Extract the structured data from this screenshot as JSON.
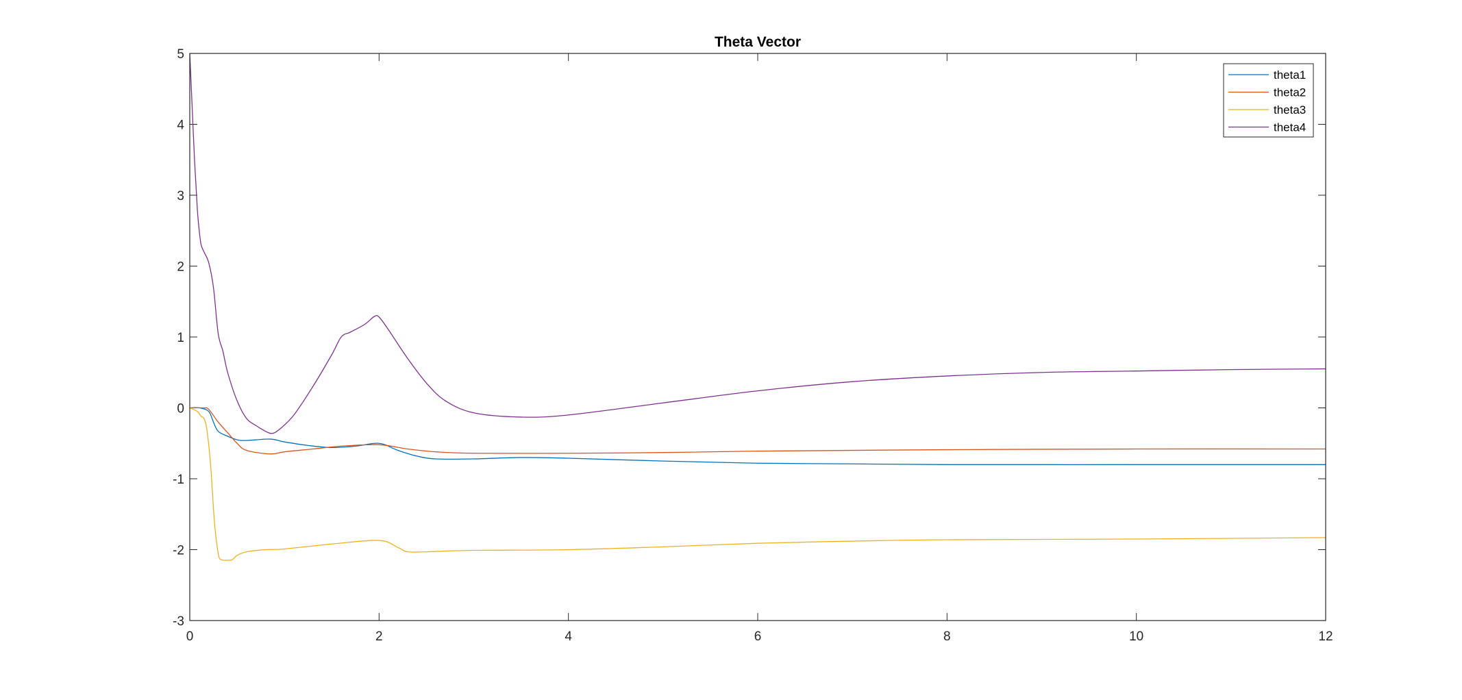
{
  "chart_data": {
    "type": "line",
    "title": "Theta Vector",
    "xlabel": "",
    "ylabel": "",
    "xlim": [
      0,
      12
    ],
    "ylim": [
      -3,
      5
    ],
    "xticks": [
      0,
      2,
      4,
      6,
      8,
      10,
      12
    ],
    "yticks": [
      -3,
      -2,
      -1,
      0,
      1,
      2,
      3,
      4,
      5
    ],
    "xtick_labels": [
      "0",
      "2",
      "4",
      "6",
      "8",
      "10",
      "12"
    ],
    "ytick_labels": [
      "-3",
      "-2",
      "-1",
      "0",
      "1",
      "2",
      "3",
      "4",
      "5"
    ],
    "grid": false,
    "legend_position": "top-right",
    "series": [
      {
        "name": "theta1",
        "color": "#0072BD",
        "points": [
          [
            0,
            0
          ],
          [
            0.1,
            0
          ],
          [
            0.2,
            -0.05
          ],
          [
            0.25,
            -0.2
          ],
          [
            0.3,
            -0.33
          ],
          [
            0.4,
            -0.4
          ],
          [
            0.5,
            -0.45
          ],
          [
            0.6,
            -0.46
          ],
          [
            0.85,
            -0.44
          ],
          [
            1.0,
            -0.48
          ],
          [
            1.25,
            -0.53
          ],
          [
            1.5,
            -0.56
          ],
          [
            1.75,
            -0.54
          ],
          [
            2.0,
            -0.5
          ],
          [
            2.2,
            -0.6
          ],
          [
            2.4,
            -0.68
          ],
          [
            2.6,
            -0.72
          ],
          [
            3.0,
            -0.72
          ],
          [
            3.5,
            -0.7
          ],
          [
            4.0,
            -0.71
          ],
          [
            5.0,
            -0.75
          ],
          [
            6.0,
            -0.78
          ],
          [
            7.0,
            -0.79
          ],
          [
            8.0,
            -0.8
          ],
          [
            10.0,
            -0.8
          ],
          [
            12.0,
            -0.8
          ]
        ]
      },
      {
        "name": "theta2",
        "color": "#D95319",
        "points": [
          [
            0,
            0
          ],
          [
            0.15,
            0
          ],
          [
            0.2,
            -0.02
          ],
          [
            0.3,
            -0.2
          ],
          [
            0.4,
            -0.35
          ],
          [
            0.5,
            -0.5
          ],
          [
            0.6,
            -0.6
          ],
          [
            0.85,
            -0.65
          ],
          [
            1.0,
            -0.62
          ],
          [
            1.3,
            -0.58
          ],
          [
            1.6,
            -0.54
          ],
          [
            2.0,
            -0.52
          ],
          [
            2.3,
            -0.58
          ],
          [
            2.6,
            -0.62
          ],
          [
            3.0,
            -0.64
          ],
          [
            4.0,
            -0.64
          ],
          [
            5.0,
            -0.63
          ],
          [
            6.0,
            -0.61
          ],
          [
            8.0,
            -0.59
          ],
          [
            10.0,
            -0.58
          ],
          [
            12.0,
            -0.58
          ]
        ]
      },
      {
        "name": "theta3",
        "color": "#EDB120",
        "points": [
          [
            0,
            0
          ],
          [
            0.08,
            -0.05
          ],
          [
            0.12,
            -0.12
          ],
          [
            0.15,
            -0.15
          ],
          [
            0.18,
            -0.3
          ],
          [
            0.22,
            -0.8
          ],
          [
            0.26,
            -1.6
          ],
          [
            0.3,
            -2.05
          ],
          [
            0.33,
            -2.14
          ],
          [
            0.4,
            -2.15
          ],
          [
            0.45,
            -2.14
          ],
          [
            0.5,
            -2.08
          ],
          [
            0.6,
            -2.03
          ],
          [
            0.8,
            -2.0
          ],
          [
            1.0,
            -1.99
          ],
          [
            1.5,
            -1.92
          ],
          [
            2.0,
            -1.87
          ],
          [
            2.2,
            -1.97
          ],
          [
            2.3,
            -2.03
          ],
          [
            2.5,
            -2.03
          ],
          [
            3.0,
            -2.01
          ],
          [
            4.0,
            -2.0
          ],
          [
            5.0,
            -1.96
          ],
          [
            6.0,
            -1.91
          ],
          [
            7.0,
            -1.88
          ],
          [
            8.0,
            -1.86
          ],
          [
            10.0,
            -1.85
          ],
          [
            12.0,
            -1.83
          ]
        ]
      },
      {
        "name": "theta4",
        "color": "#7E2F8E",
        "points": [
          [
            0,
            5
          ],
          [
            0.02,
            4.4
          ],
          [
            0.05,
            3.5
          ],
          [
            0.08,
            2.8
          ],
          [
            0.1,
            2.5
          ],
          [
            0.12,
            2.3
          ],
          [
            0.15,
            2.2
          ],
          [
            0.2,
            2.05
          ],
          [
            0.25,
            1.7
          ],
          [
            0.3,
            1.05
          ],
          [
            0.35,
            0.8
          ],
          [
            0.4,
            0.5
          ],
          [
            0.5,
            0.1
          ],
          [
            0.6,
            -0.15
          ],
          [
            0.7,
            -0.25
          ],
          [
            0.8,
            -0.33
          ],
          [
            0.87,
            -0.36
          ],
          [
            0.95,
            -0.3
          ],
          [
            1.1,
            -0.1
          ],
          [
            1.3,
            0.3
          ],
          [
            1.5,
            0.75
          ],
          [
            1.6,
            1.0
          ],
          [
            1.7,
            1.07
          ],
          [
            1.85,
            1.18
          ],
          [
            1.95,
            1.29
          ],
          [
            2.0,
            1.28
          ],
          [
            2.1,
            1.1
          ],
          [
            2.3,
            0.7
          ],
          [
            2.5,
            0.35
          ],
          [
            2.7,
            0.1
          ],
          [
            3.0,
            -0.07
          ],
          [
            3.5,
            -0.13
          ],
          [
            4.0,
            -0.1
          ],
          [
            5.0,
            0.07
          ],
          [
            6.0,
            0.24
          ],
          [
            7.0,
            0.37
          ],
          [
            8.0,
            0.45
          ],
          [
            9.0,
            0.5
          ],
          [
            10.0,
            0.52
          ],
          [
            11.0,
            0.54
          ],
          [
            12.0,
            0.55
          ]
        ]
      }
    ]
  }
}
